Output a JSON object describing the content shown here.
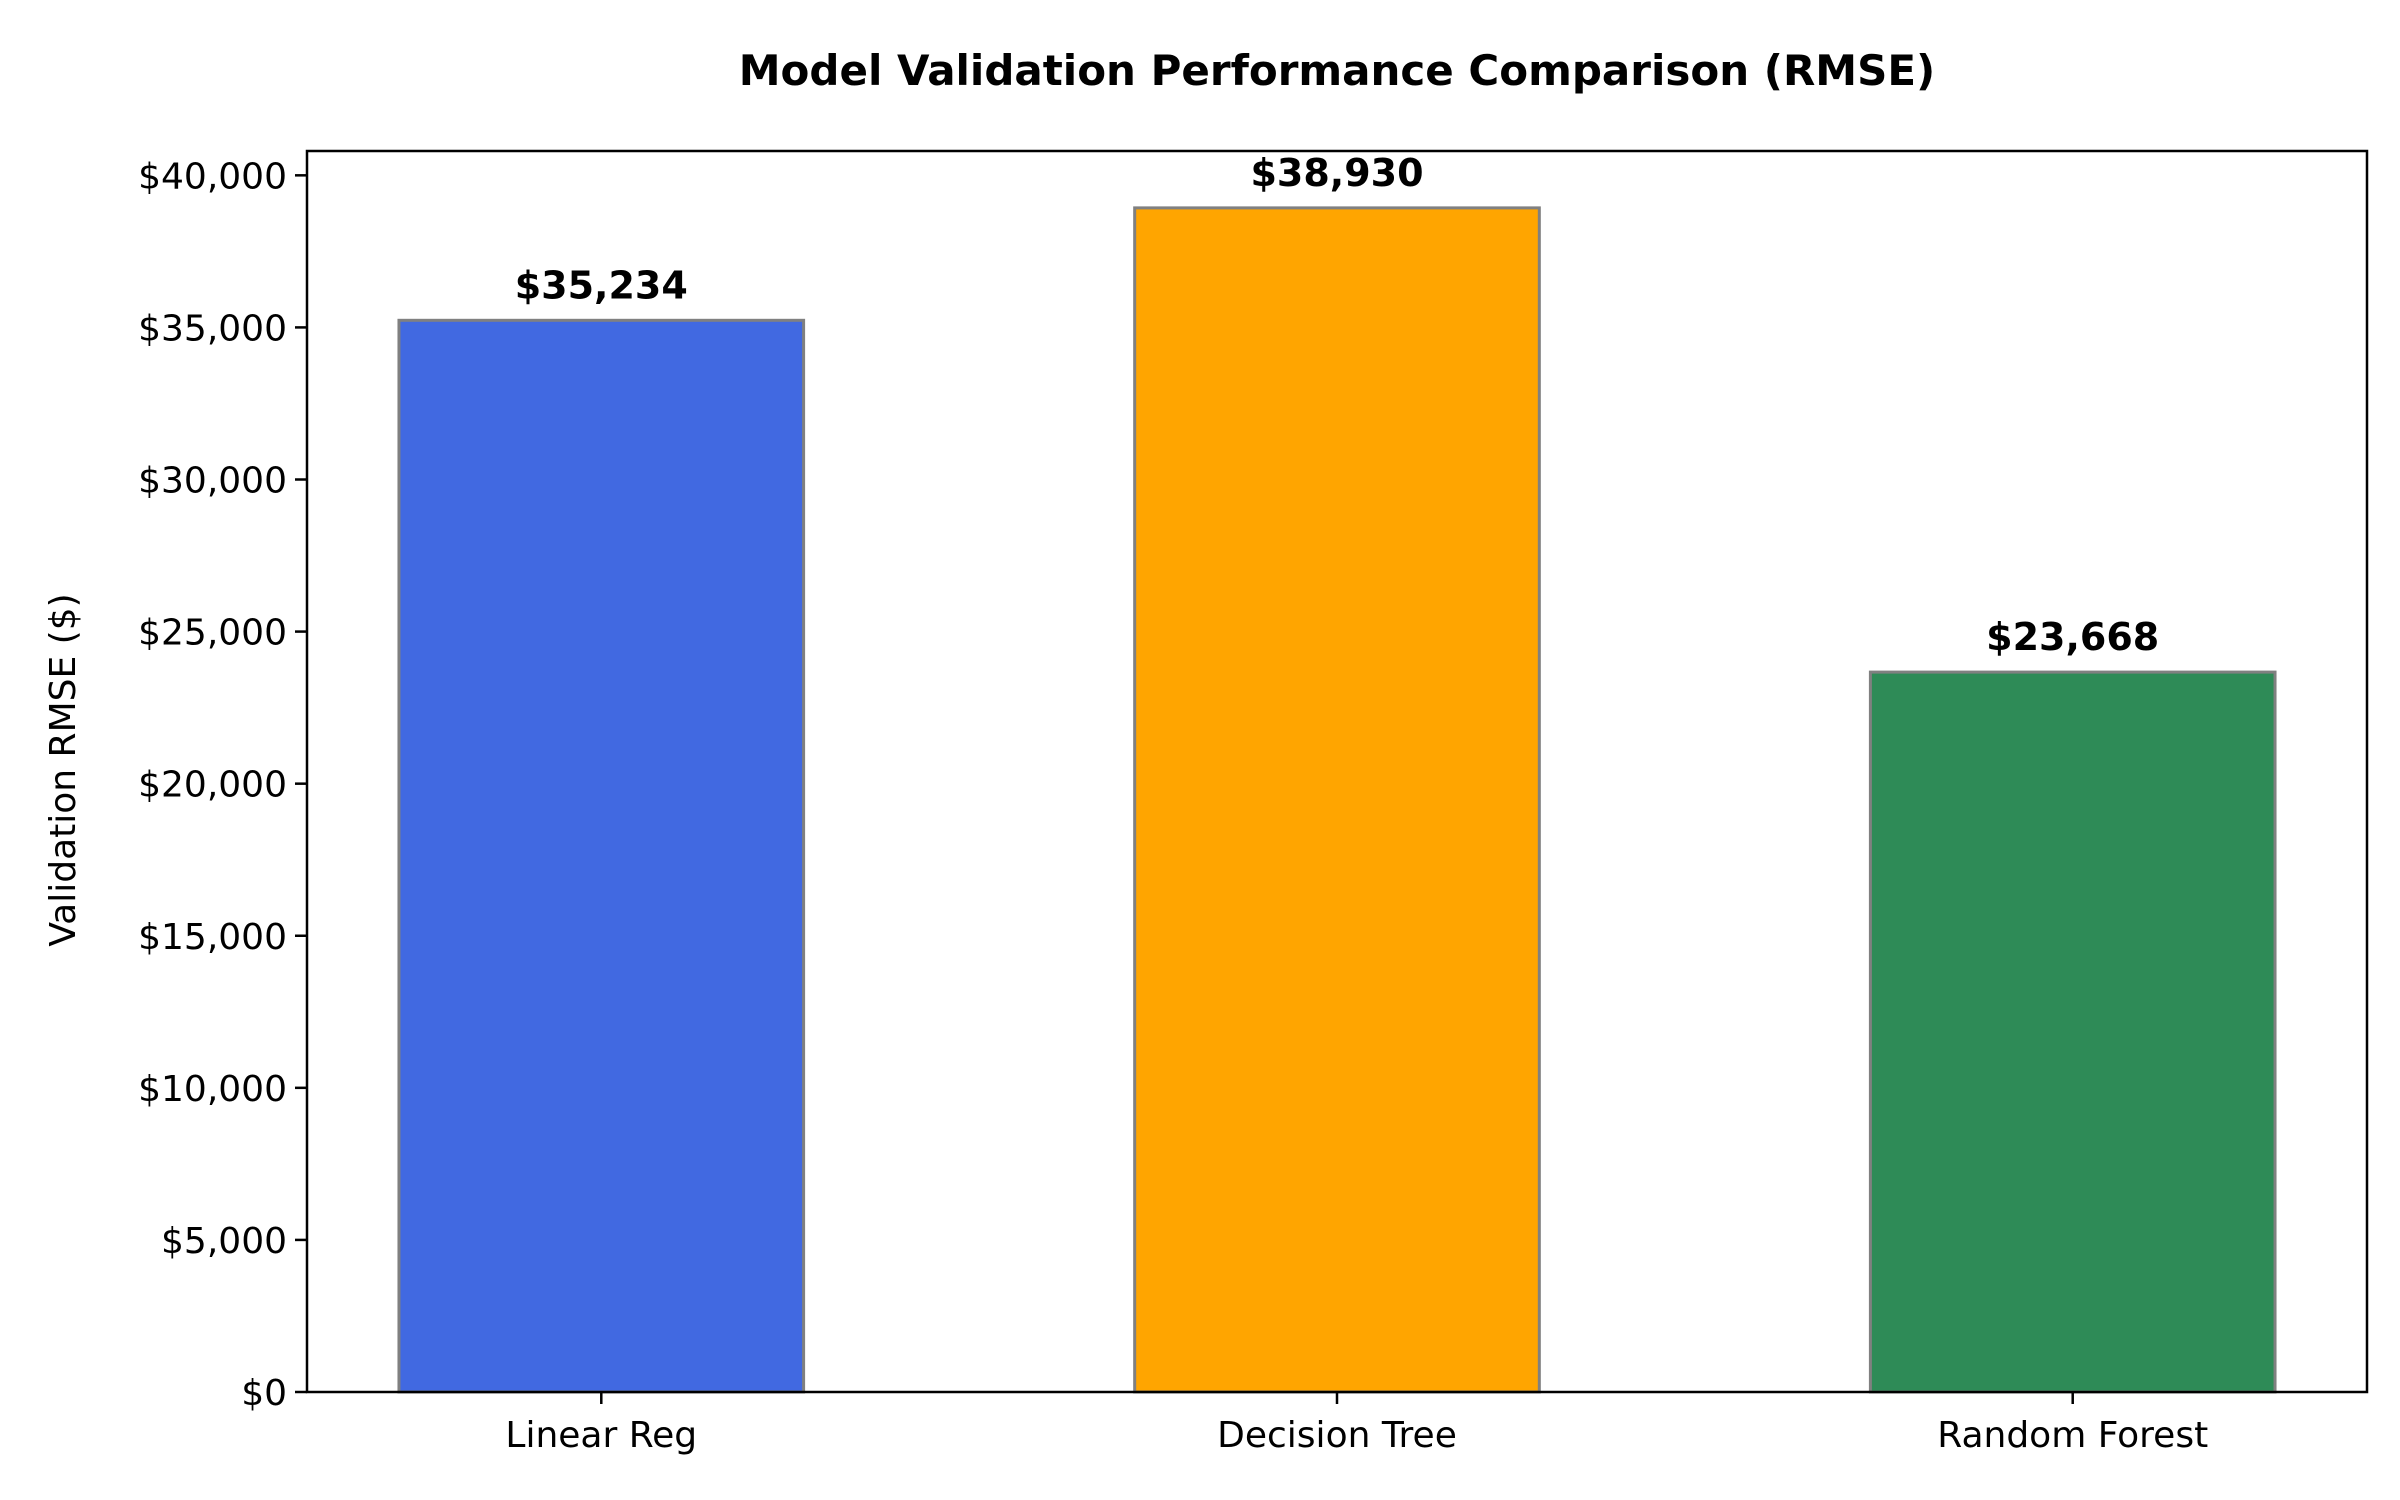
{
  "chart_data": {
    "type": "bar",
    "title": "Model Validation Performance Comparison (RMSE)",
    "xlabel": "",
    "ylabel": "Validation RMSE ($)",
    "ylim": [
      0,
      40800
    ],
    "yticks": [
      0,
      5000,
      10000,
      15000,
      20000,
      25000,
      30000,
      35000,
      40000
    ],
    "ytick_labels": [
      "$0",
      "$5,000",
      "$10,000",
      "$15,000",
      "$20,000",
      "$25,000",
      "$30,000",
      "$35,000",
      "$40,000"
    ],
    "categories": [
      "Linear Reg",
      "Decision Tree",
      "Random Forest"
    ],
    "values": [
      35234,
      38930,
      23668
    ],
    "value_labels": [
      "$35,234",
      "$38,930",
      "$23,668"
    ],
    "colors": [
      "#4169E1",
      "#FFA500",
      "#2E8B57"
    ],
    "edge_color": "#808080",
    "grid": false,
    "legend": "none"
  }
}
